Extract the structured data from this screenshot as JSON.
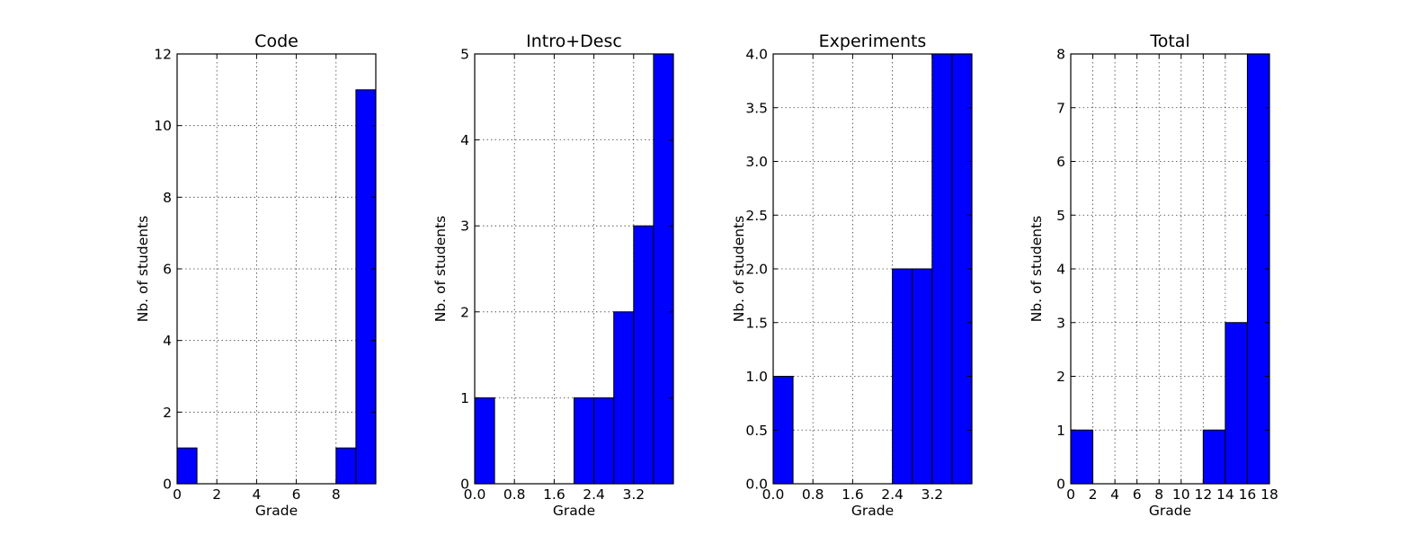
{
  "chart_data": [
    {
      "type": "bar",
      "title": "Code",
      "xlabel": "Grade",
      "ylabel": "Nb. of students",
      "xlim": [
        0,
        10
      ],
      "ylim": [
        0,
        12
      ],
      "xticks": [
        "0",
        "2",
        "4",
        "6",
        "8"
      ],
      "xtick_values": [
        0,
        2,
        4,
        6,
        8
      ],
      "yticks": [
        "0",
        "2",
        "4",
        "6",
        "8",
        "10",
        "12"
      ],
      "ytick_values": [
        0,
        2,
        4,
        6,
        8,
        10,
        12
      ],
      "bin_edges": [
        0,
        1,
        2,
        3,
        4,
        5,
        6,
        7,
        8,
        9,
        10
      ],
      "values": [
        1,
        0,
        0,
        0,
        0,
        0,
        0,
        0,
        1,
        11
      ],
      "grid": true,
      "color": "#0000ff"
    },
    {
      "type": "bar",
      "title": "Intro+Desc",
      "xlabel": "Grade",
      "ylabel": "Nb. of students",
      "xlim": [
        0,
        4
      ],
      "ylim": [
        0,
        5
      ],
      "xticks": [
        "0.0",
        "0.8",
        "1.6",
        "2.4",
        "3.2"
      ],
      "xtick_values": [
        0,
        0.8,
        1.6,
        2.4,
        3.2
      ],
      "yticks": [
        "0",
        "1",
        "2",
        "3",
        "4",
        "5"
      ],
      "ytick_values": [
        0,
        1,
        2,
        3,
        4,
        5
      ],
      "bin_edges": [
        0,
        0.4,
        0.8,
        1.2,
        1.6,
        2.0,
        2.4,
        2.8,
        3.2,
        3.6,
        4.0
      ],
      "values": [
        1,
        0,
        0,
        0,
        0,
        1,
        1,
        2,
        3,
        5
      ],
      "grid": true,
      "color": "#0000ff"
    },
    {
      "type": "bar",
      "title": "Experiments",
      "xlabel": "Grade",
      "ylabel": "Nb. of students",
      "xlim": [
        0,
        4
      ],
      "ylim": [
        0,
        4
      ],
      "xticks": [
        "0.0",
        "0.8",
        "1.6",
        "2.4",
        "3.2"
      ],
      "xtick_values": [
        0,
        0.8,
        1.6,
        2.4,
        3.2
      ],
      "yticks": [
        "0.0",
        "0.5",
        "1.0",
        "1.5",
        "2.0",
        "2.5",
        "3.0",
        "3.5",
        "4.0"
      ],
      "ytick_values": [
        0,
        0.5,
        1,
        1.5,
        2,
        2.5,
        3,
        3.5,
        4
      ],
      "bin_edges": [
        0,
        0.4,
        0.8,
        1.2,
        1.6,
        2.0,
        2.4,
        2.8,
        3.2,
        3.6,
        4.0
      ],
      "values": [
        1,
        0,
        0,
        0,
        0,
        0,
        2,
        2,
        4,
        4
      ],
      "grid": true,
      "color": "#0000ff"
    },
    {
      "type": "bar",
      "title": "Total",
      "xlabel": "Grade",
      "ylabel": "Nb. of students",
      "xlim": [
        0,
        18
      ],
      "ylim": [
        0,
        8
      ],
      "xticks": [
        "0",
        "2",
        "4",
        "6",
        "8",
        "10",
        "12",
        "14",
        "16",
        "18"
      ],
      "xtick_values": [
        0,
        2,
        4,
        6,
        8,
        10,
        12,
        14,
        16,
        18
      ],
      "yticks": [
        "0",
        "1",
        "2",
        "3",
        "4",
        "5",
        "6",
        "7",
        "8"
      ],
      "ytick_values": [
        0,
        1,
        2,
        3,
        4,
        5,
        6,
        7,
        8
      ],
      "bin_edges": [
        0,
        2,
        4,
        6,
        8,
        10,
        12,
        14,
        16,
        18
      ],
      "values": [
        1,
        0,
        0,
        0,
        0,
        0,
        1,
        3,
        8
      ],
      "grid": true,
      "color": "#0000ff"
    }
  ]
}
